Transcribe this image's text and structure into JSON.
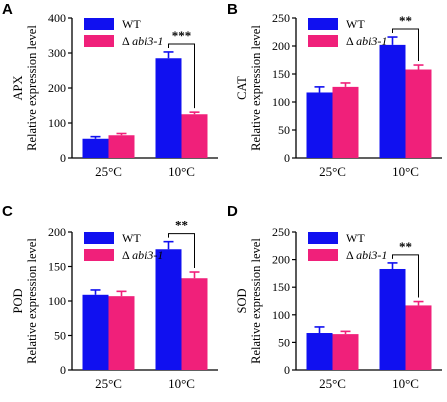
{
  "legend": {
    "series": [
      {
        "name": "WT",
        "color": "#1010f0"
      },
      {
        "name_symbol": "Δ",
        "name_italic": "abi3-1",
        "color": "#f0207a"
      }
    ]
  },
  "chart_data": [
    {
      "type": "bar",
      "panel": "A",
      "ylabel_top": "APX",
      "ylabel": "Relative expression level",
      "categories": [
        "25°C",
        "10°C"
      ],
      "ylim": [
        0,
        400
      ],
      "yticks": [
        0,
        100,
        200,
        300,
        400
      ],
      "series": [
        {
          "name": "WT",
          "values": [
            55,
            285
          ],
          "errors": [
            6,
            18
          ]
        },
        {
          "name": "Δ abi3-1",
          "values": [
            65,
            125
          ],
          "errors": [
            5,
            6
          ]
        }
      ],
      "significance": "***"
    },
    {
      "type": "bar",
      "panel": "B",
      "ylabel_top": "CAT",
      "ylabel": "Relative expression level",
      "categories": [
        "25°C",
        "10°C"
      ],
      "ylim": [
        0,
        250
      ],
      "yticks": [
        0,
        50,
        100,
        150,
        200,
        250
      ],
      "series": [
        {
          "name": "WT",
          "values": [
            117,
            202
          ],
          "errors": [
            10,
            14
          ]
        },
        {
          "name": "Δ abi3-1",
          "values": [
            127,
            158
          ],
          "errors": [
            7,
            8
          ]
        }
      ],
      "significance": "**"
    },
    {
      "type": "bar",
      "panel": "C",
      "ylabel_top": "POD",
      "ylabel": "Relative expression level",
      "categories": [
        "25°C",
        "10°C"
      ],
      "ylim": [
        0,
        200
      ],
      "yticks": [
        0,
        50,
        100,
        150,
        200
      ],
      "series": [
        {
          "name": "WT",
          "values": [
            109,
            175
          ],
          "errors": [
            7,
            11
          ]
        },
        {
          "name": "Δ abi3-1",
          "values": [
            107,
            133
          ],
          "errors": [
            7,
            9
          ]
        }
      ],
      "significance": "**"
    },
    {
      "type": "bar",
      "panel": "D",
      "ylabel_top": "SOD",
      "ylabel": "Relative expression level",
      "categories": [
        "25°C",
        "10°C"
      ],
      "ylim": [
        0,
        250
      ],
      "yticks": [
        0,
        50,
        100,
        150,
        200,
        250
      ],
      "series": [
        {
          "name": "WT",
          "values": [
            67,
            183
          ],
          "errors": [
            11,
            11
          ]
        },
        {
          "name": "Δ abi3-1",
          "values": [
            65,
            117
          ],
          "errors": [
            5,
            7
          ]
        }
      ],
      "significance": "**"
    }
  ]
}
